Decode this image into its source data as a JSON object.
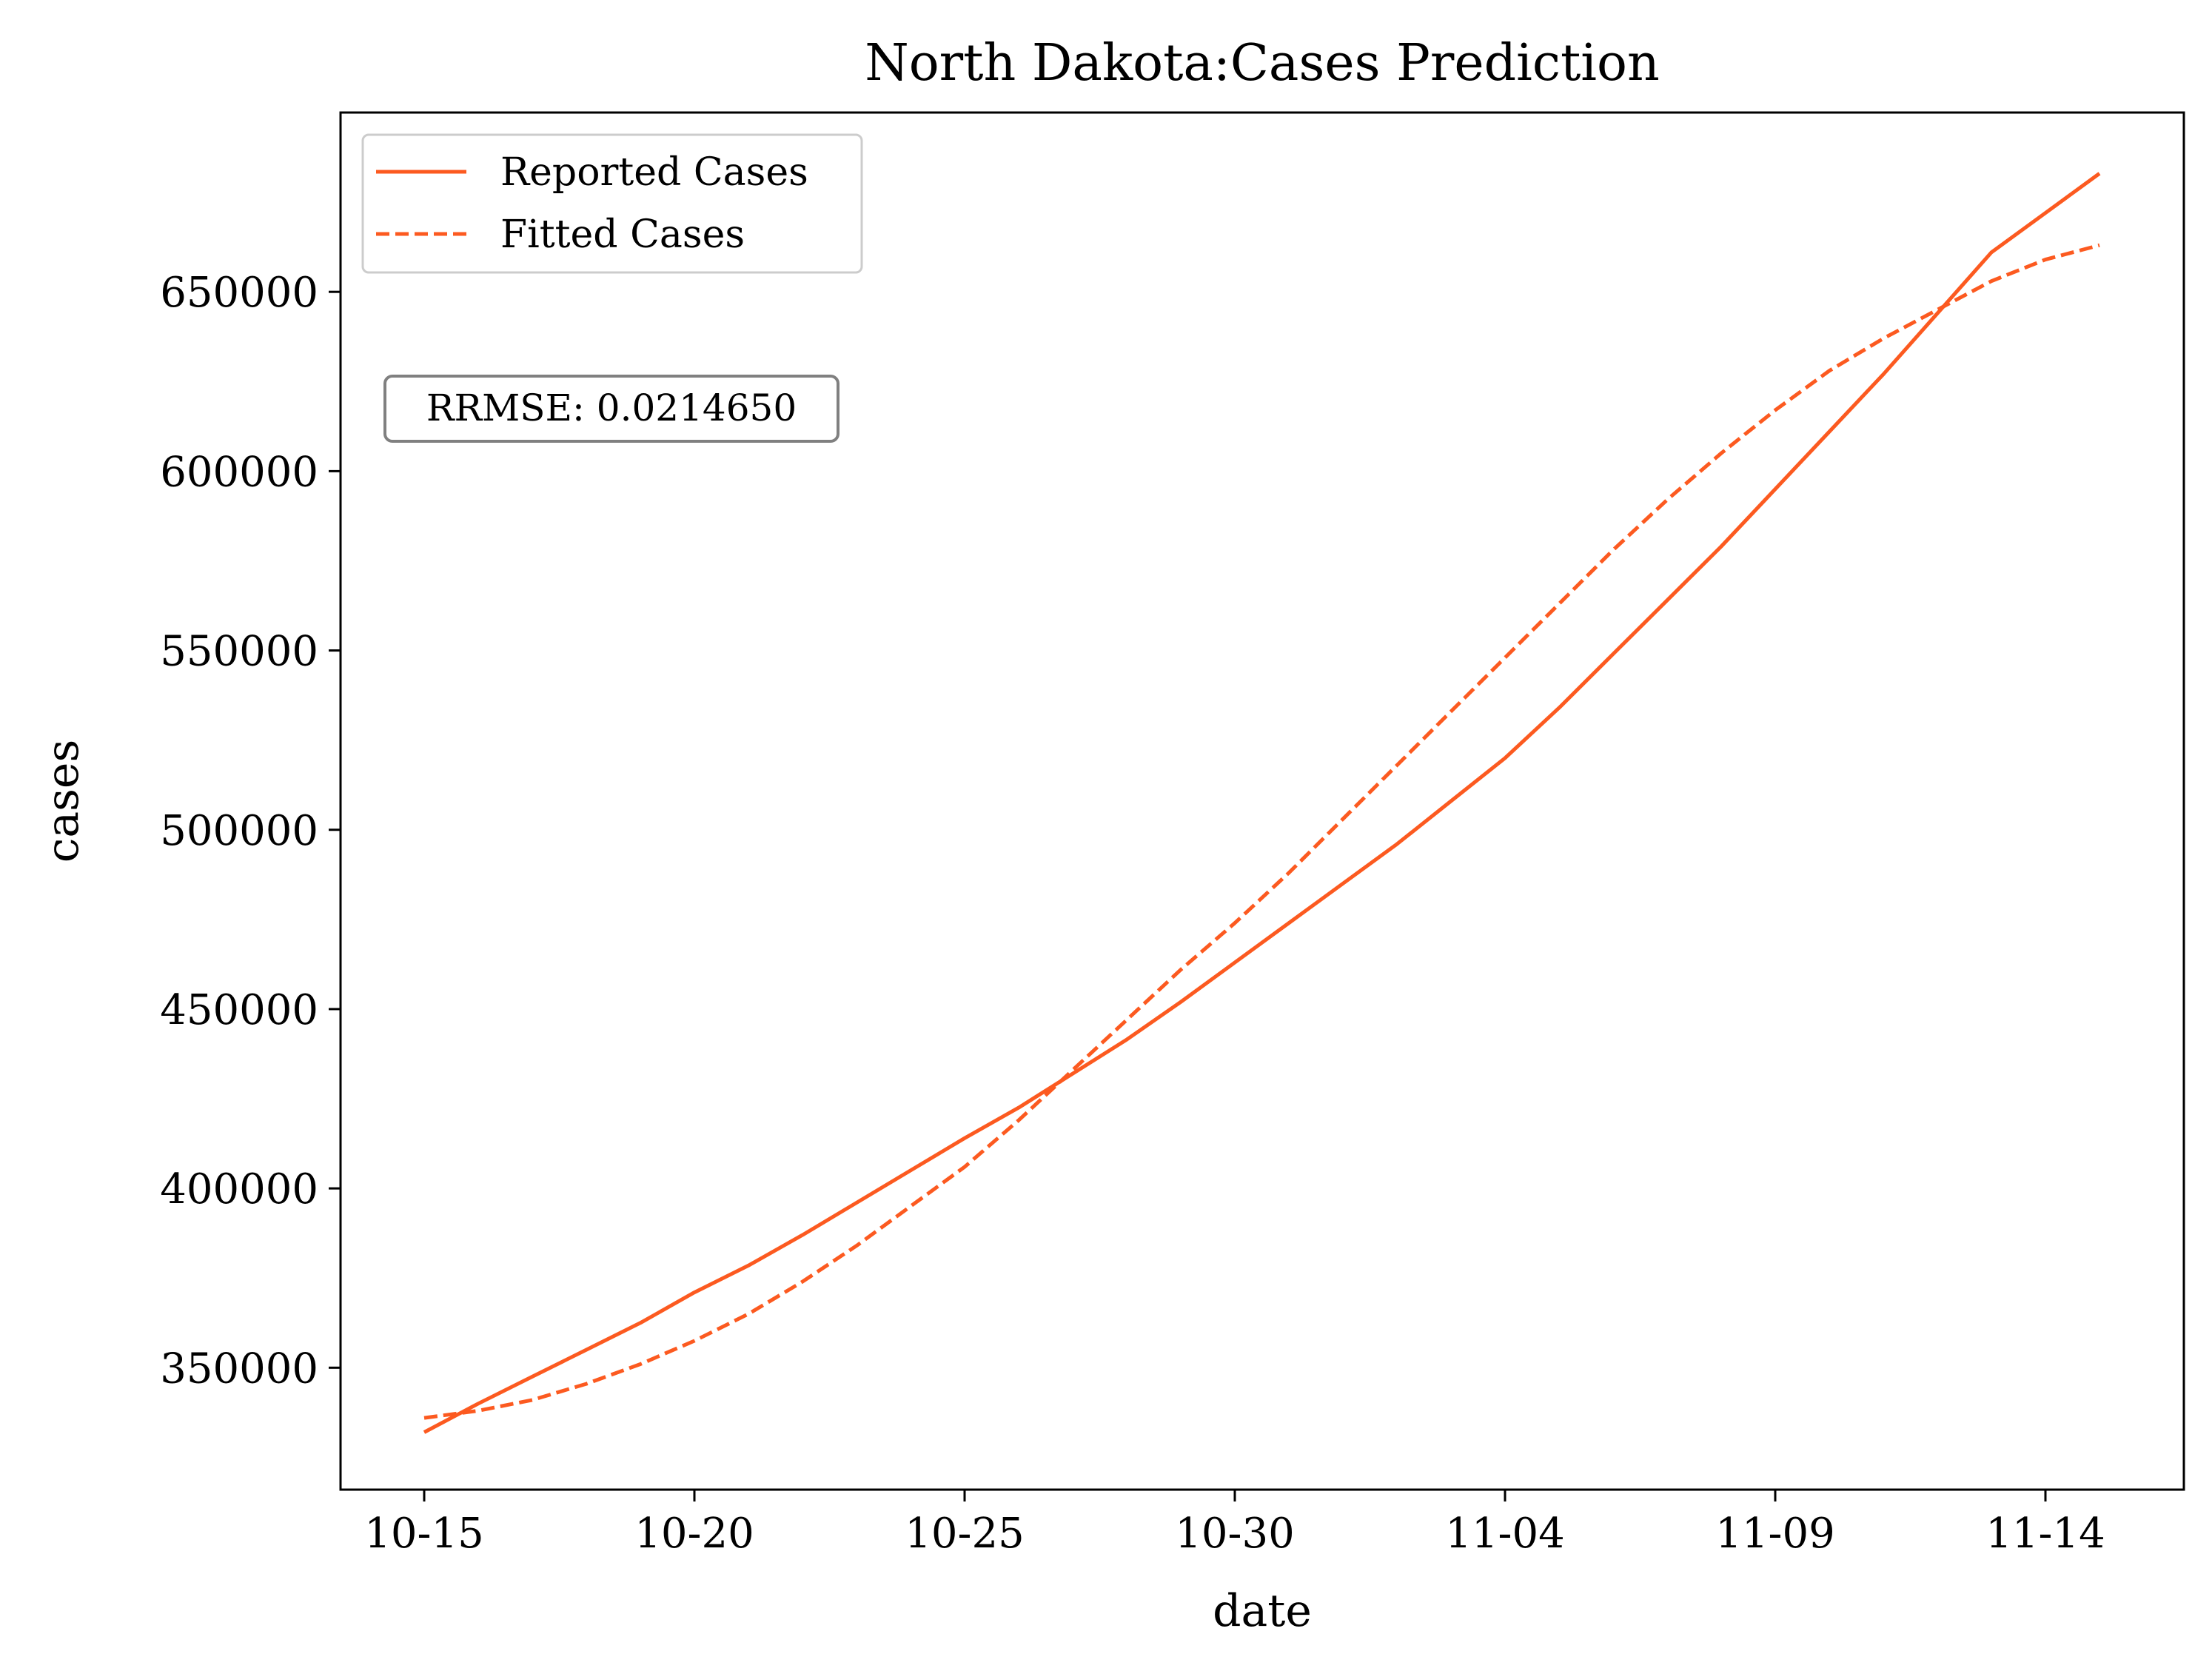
{
  "chart_data": {
    "type": "line",
    "title": "North Dakota:Cases Prediction",
    "xlabel": "date",
    "ylabel": "cases",
    "x": [
      "10-15",
      "10-16",
      "10-17",
      "10-18",
      "10-19",
      "10-20",
      "10-21",
      "10-22",
      "10-23",
      "10-24",
      "10-25",
      "10-26",
      "10-27",
      "10-28",
      "10-29",
      "10-30",
      "10-31",
      "11-01",
      "11-02",
      "11-03",
      "11-04",
      "11-05",
      "11-06",
      "11-07",
      "11-08",
      "11-09",
      "11-10",
      "11-11",
      "11-12",
      "11-13",
      "11-14",
      "11-15"
    ],
    "x_ticks": [
      "10-15",
      "10-20",
      "10-25",
      "10-30",
      "11-04",
      "11-09",
      "11-14"
    ],
    "y_ticks": [
      350000,
      400000,
      450000,
      500000,
      550000,
      600000,
      650000
    ],
    "ylim": [
      316000,
      700000
    ],
    "grid": false,
    "legend_position": "top-left",
    "series": [
      {
        "name": "Reported Cases",
        "style": "solid",
        "color": "#fc5a20",
        "values": [
          332000,
          340000,
          347500,
          355000,
          362500,
          371000,
          378500,
          387000,
          396000,
          405000,
          414000,
          422500,
          432000,
          441500,
          452000,
          463000,
          474000,
          485000,
          496000,
          508000,
          520000,
          534000,
          549000,
          564000,
          579000,
          595000,
          611000,
          627000,
          644000,
          661000,
          672000,
          683000
        ]
      },
      {
        "name": "Fitted Cases",
        "style": "dashed",
        "color": "#fc5a20",
        "values": [
          336000,
          338000,
          341000,
          345500,
          351000,
          357500,
          365000,
          374000,
          384000,
          395000,
          406000,
          419000,
          433000,
          447000,
          461000,
          474000,
          488000,
          503000,
          518000,
          533000,
          548000,
          563000,
          578000,
          592000,
          605000,
          617000,
          628000,
          637000,
          645000,
          653000,
          659000,
          663000
        ]
      }
    ],
    "annotation": "RRMSE: 0.0214650"
  }
}
